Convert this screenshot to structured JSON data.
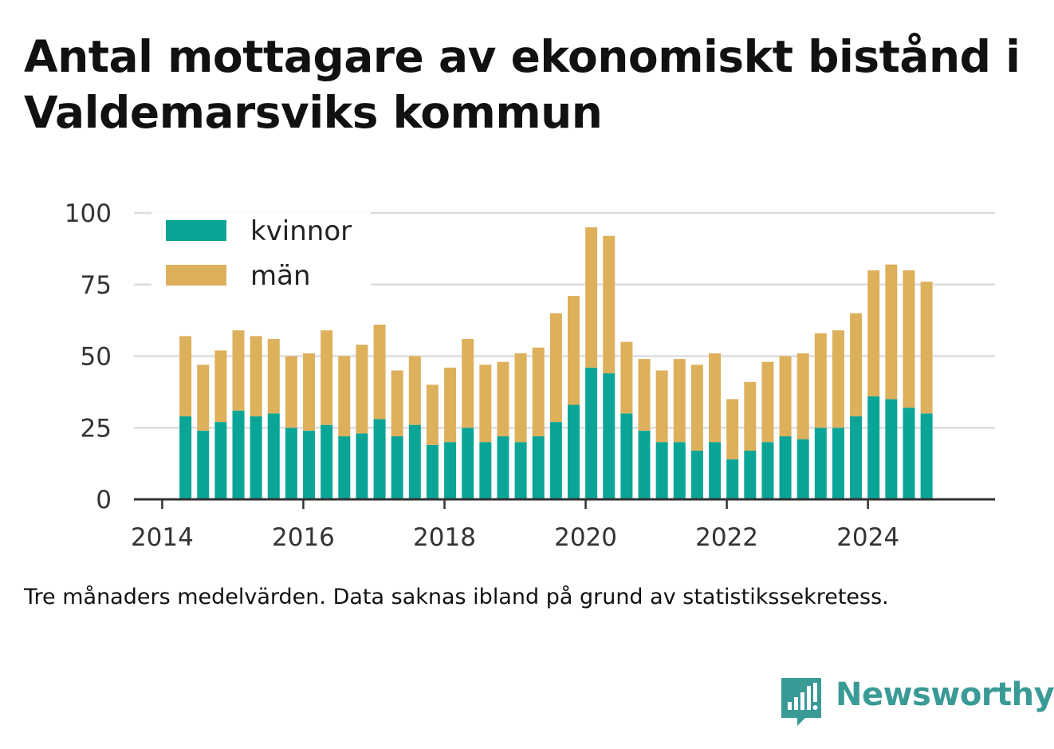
{
  "title": "Antal mottagare av ekonomiskt bistånd i Valdemarsviks kommun",
  "note": "Tre månaders medelvärden. Data saknas ibland på grund av statistikssekretess.",
  "brand": {
    "name": "Newsworthy",
    "icon": "newsworthy-logo-icon",
    "color": "#3a9a96"
  },
  "colors": {
    "kvinnor": "#0aa597",
    "man": "#ddb05c",
    "grid": "#dddddd",
    "axis": "#333333"
  },
  "chart_data": {
    "type": "bar",
    "stacked": true,
    "title": "Antal mottagare av ekonomiskt bistånd i Valdemarsviks kommun",
    "xlabel": "",
    "ylabel": "",
    "ylim": [
      0,
      100
    ],
    "yticks": [
      0,
      25,
      50,
      75,
      100
    ],
    "xlim": [
      2013.6,
      2025.8
    ],
    "xticks": [
      2014,
      2016,
      2018,
      2020,
      2022,
      2024
    ],
    "grid": true,
    "legend_position": "top-left",
    "x": [
      2014.33,
      2014.58,
      2014.83,
      2015.08,
      2015.33,
      2015.58,
      2015.83,
      2016.08,
      2016.33,
      2016.58,
      2016.83,
      2017.08,
      2017.33,
      2017.58,
      2017.83,
      2018.08,
      2018.33,
      2018.58,
      2018.83,
      2019.08,
      2019.33,
      2019.58,
      2019.83,
      2020.08,
      2020.33,
      2020.58,
      2020.83,
      2021.08,
      2021.33,
      2021.58,
      2021.83,
      2022.08,
      2022.33,
      2022.58,
      2022.83,
      2023.08,
      2023.33,
      2023.58,
      2023.83,
      2024.08,
      2024.33,
      2024.58,
      2024.83
    ],
    "series": [
      {
        "name": "kvinnor",
        "color": "#0aa597",
        "values": [
          29,
          24,
          27,
          31,
          29,
          30,
          25,
          24,
          26,
          22,
          23,
          28,
          22,
          26,
          19,
          20,
          25,
          20,
          22,
          20,
          22,
          27,
          33,
          46,
          44,
          30,
          24,
          20,
          20,
          17,
          20,
          14,
          17,
          20,
          22,
          21,
          25,
          25,
          29,
          36,
          35,
          32,
          30
        ]
      },
      {
        "name": "män",
        "color": "#ddb05c",
        "values": [
          28,
          23,
          25,
          28,
          28,
          26,
          25,
          27,
          33,
          28,
          31,
          33,
          23,
          24,
          21,
          26,
          31,
          27,
          26,
          31,
          31,
          38,
          38,
          49,
          48,
          25,
          25,
          25,
          29,
          30,
          31,
          21,
          24,
          28,
          28,
          30,
          33,
          34,
          36,
          44,
          47,
          48,
          46
        ]
      }
    ]
  }
}
